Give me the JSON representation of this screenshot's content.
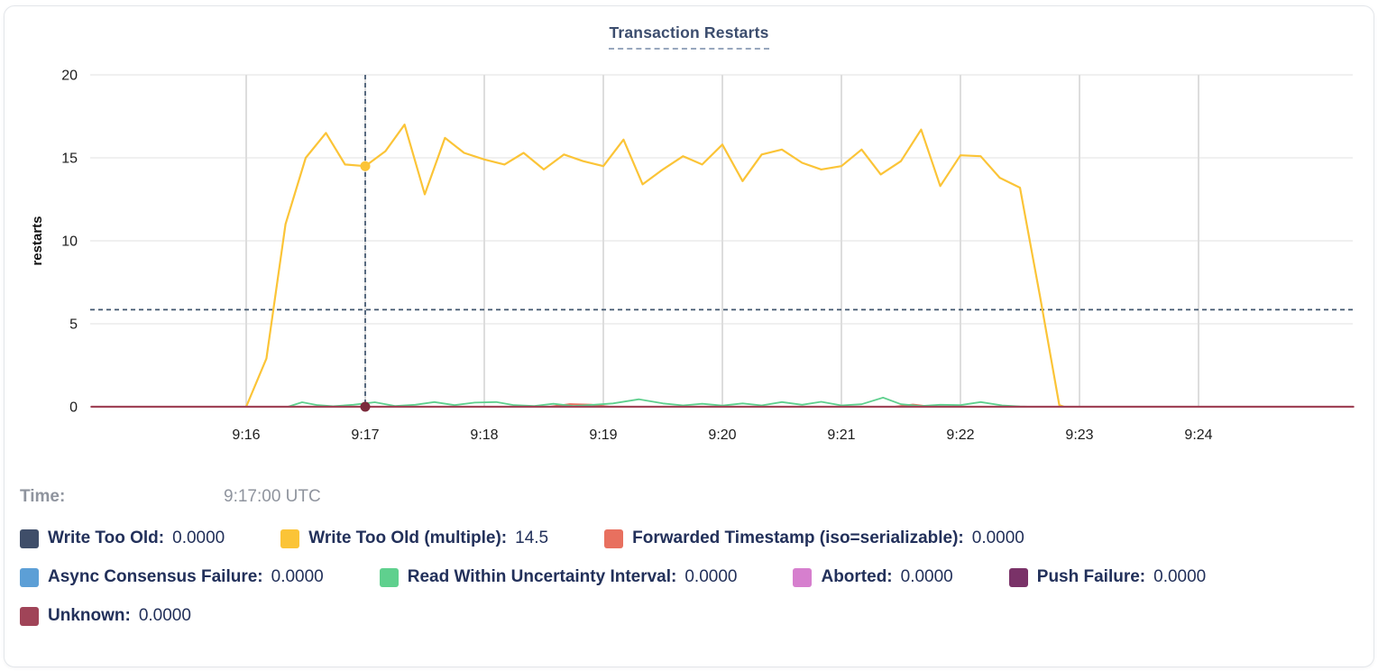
{
  "hover_readout": {
    "label": "Time:",
    "value": "9:17:00 UTC"
  },
  "legend": {
    "rows": [
      [
        0,
        1,
        2
      ],
      [
        3,
        4,
        5,
        6
      ],
      [
        7
      ]
    ]
  },
  "chart_data": {
    "type": "line",
    "title": "Transaction Restarts",
    "x_axis": {
      "description": "time of day (UTC)",
      "tick_values": [
        16,
        17,
        18,
        19,
        20,
        21,
        22,
        23,
        24
      ],
      "tick_labels": [
        "9:16",
        "9:17",
        "9:18",
        "9:19",
        "9:20",
        "9:21",
        "9:22",
        "9:23",
        "9:24"
      ],
      "domain_minutes_after_9": [
        14.7,
        25.3
      ],
      "grid": true
    },
    "y_axis": {
      "label": "restarts",
      "ticks": [
        0,
        5,
        10,
        15,
        20
      ],
      "domain": [
        0,
        20
      ],
      "grid": true
    },
    "hover": {
      "time_value": 17.0,
      "time_text": "9:17:00 UTC",
      "crosshair_y_value": 5.85,
      "crosshair_color": "#41566f",
      "dots": [
        {
          "series": "Write Too Old (multiple)",
          "t": 17.0,
          "v": 14.5,
          "color": "#fbc437"
        },
        {
          "series": "Unknown",
          "t": 17.0,
          "v": 0,
          "color": "#7c2b3c"
        }
      ]
    },
    "draw_order": [
      0,
      3,
      5,
      6,
      2,
      1,
      4,
      7
    ],
    "series": [
      {
        "name": "Write Too Old",
        "color": "#3f4e69",
        "width": 1.6,
        "hover_value": "0.0000",
        "points": [
          [
            14.7,
            0
          ],
          [
            25.3,
            0
          ]
        ]
      },
      {
        "name": "Write Too Old (multiple)",
        "color": "#fbc437",
        "width": 2.2,
        "hover_value": "14.5",
        "points": [
          [
            16.0,
            0
          ],
          [
            16.17,
            2.9
          ],
          [
            16.33,
            11.0
          ],
          [
            16.5,
            15.0
          ],
          [
            16.67,
            16.5
          ],
          [
            16.83,
            14.6
          ],
          [
            17.0,
            14.5
          ],
          [
            17.17,
            15.4
          ],
          [
            17.33,
            17.0
          ],
          [
            17.5,
            12.8
          ],
          [
            17.67,
            16.2
          ],
          [
            17.83,
            15.3
          ],
          [
            18.0,
            14.9
          ],
          [
            18.17,
            14.6
          ],
          [
            18.33,
            15.3
          ],
          [
            18.5,
            14.3
          ],
          [
            18.67,
            15.2
          ],
          [
            18.83,
            14.8
          ],
          [
            19.0,
            14.5
          ],
          [
            19.17,
            16.1
          ],
          [
            19.33,
            13.4
          ],
          [
            19.5,
            14.3
          ],
          [
            19.67,
            15.1
          ],
          [
            19.83,
            14.6
          ],
          [
            20.0,
            15.8
          ],
          [
            20.17,
            13.6
          ],
          [
            20.33,
            15.2
          ],
          [
            20.5,
            15.5
          ],
          [
            20.67,
            14.7
          ],
          [
            20.83,
            14.3
          ],
          [
            21.0,
            14.5
          ],
          [
            21.17,
            15.5
          ],
          [
            21.33,
            14.0
          ],
          [
            21.5,
            14.8
          ],
          [
            21.67,
            16.7
          ],
          [
            21.83,
            13.3
          ],
          [
            22.0,
            15.15
          ],
          [
            22.17,
            15.1
          ],
          [
            22.33,
            13.8
          ],
          [
            22.5,
            13.2
          ],
          [
            22.67,
            6.6
          ],
          [
            22.83,
            0.1
          ],
          [
            22.87,
            0
          ]
        ]
      },
      {
        "name": "Forwarded Timestamp (iso=serializable)",
        "color": "#e8705f",
        "width": 2,
        "hover_value": "0.0000",
        "points": [
          [
            14.7,
            0
          ],
          [
            18.55,
            0
          ],
          [
            18.72,
            0.16
          ],
          [
            18.9,
            0.12
          ],
          [
            19.05,
            0
          ],
          [
            21.45,
            0
          ],
          [
            21.6,
            0.13
          ],
          [
            21.75,
            0
          ],
          [
            25.3,
            0
          ]
        ]
      },
      {
        "name": "Async Consensus Failure",
        "color": "#5c9fd6",
        "width": 1.6,
        "hover_value": "0.0000",
        "points": [
          [
            14.7,
            0
          ],
          [
            25.3,
            0
          ]
        ]
      },
      {
        "name": "Read Within Uncertainty Interval",
        "color": "#5fd08e",
        "width": 1.8,
        "hover_value": "0.0000",
        "points": [
          [
            16.35,
            0
          ],
          [
            16.47,
            0.27
          ],
          [
            16.6,
            0.1
          ],
          [
            16.73,
            0.03
          ],
          [
            16.9,
            0.12
          ],
          [
            17.08,
            0.27
          ],
          [
            17.25,
            0.05
          ],
          [
            17.42,
            0.12
          ],
          [
            17.58,
            0.28
          ],
          [
            17.75,
            0.1
          ],
          [
            17.92,
            0.25
          ],
          [
            18.1,
            0.28
          ],
          [
            18.25,
            0.1
          ],
          [
            18.42,
            0.05
          ],
          [
            18.58,
            0.18
          ],
          [
            18.75,
            0.05
          ],
          [
            18.92,
            0.12
          ],
          [
            19.08,
            0.2
          ],
          [
            19.3,
            0.45
          ],
          [
            19.5,
            0.2
          ],
          [
            19.67,
            0.08
          ],
          [
            19.83,
            0.18
          ],
          [
            20.0,
            0.07
          ],
          [
            20.17,
            0.2
          ],
          [
            20.33,
            0.08
          ],
          [
            20.5,
            0.28
          ],
          [
            20.67,
            0.12
          ],
          [
            20.83,
            0.3
          ],
          [
            21.0,
            0.08
          ],
          [
            21.17,
            0.15
          ],
          [
            21.35,
            0.55
          ],
          [
            21.5,
            0.15
          ],
          [
            21.67,
            0.05
          ],
          [
            21.83,
            0.12
          ],
          [
            22.0,
            0.1
          ],
          [
            22.17,
            0.28
          ],
          [
            22.35,
            0.08
          ],
          [
            22.5,
            0.02
          ],
          [
            22.6,
            0
          ]
        ]
      },
      {
        "name": "Aborted",
        "color": "#d67fce",
        "width": 1.6,
        "hover_value": "0.0000",
        "points": [
          [
            14.7,
            0
          ],
          [
            25.3,
            0
          ]
        ]
      },
      {
        "name": "Push Failure",
        "color": "#7a3268",
        "width": 1.6,
        "hover_value": "0.0000",
        "points": [
          [
            14.7,
            0
          ],
          [
            25.3,
            0
          ]
        ]
      },
      {
        "name": "Unknown",
        "color": "#a04458",
        "width": 2.2,
        "hover_value": "0.0000",
        "points": [
          [
            14.7,
            0
          ],
          [
            25.3,
            0
          ]
        ]
      }
    ]
  }
}
